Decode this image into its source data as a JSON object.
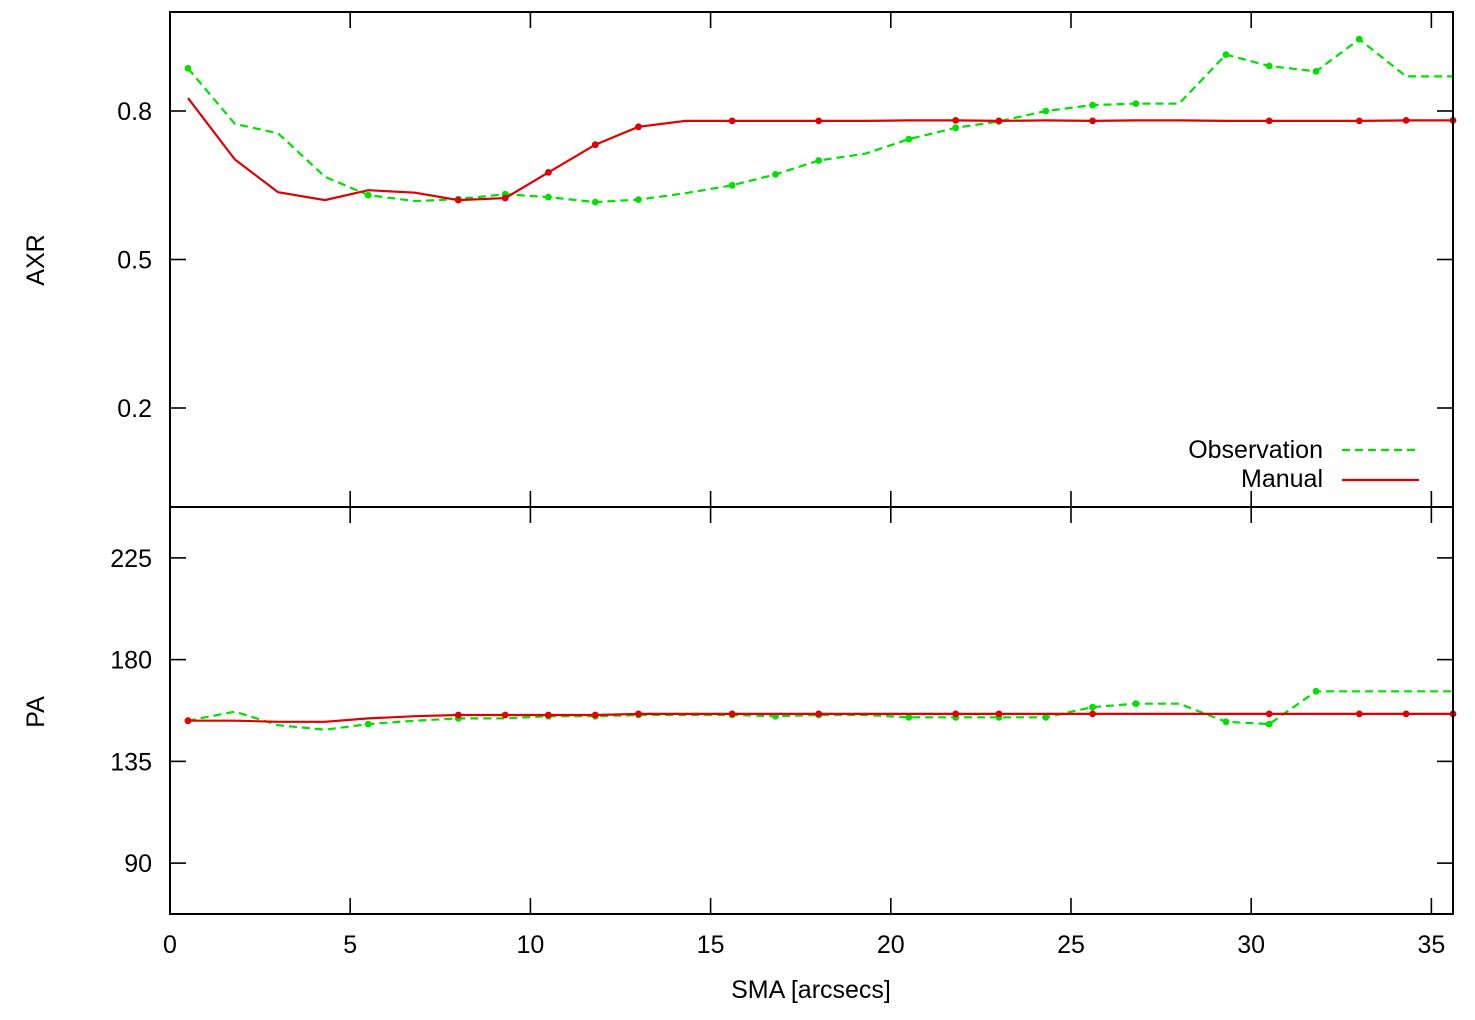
{
  "chart_data": [
    {
      "type": "line",
      "panel": "top",
      "ylabel": "AXR",
      "xlabel": "",
      "xlim": [
        0,
        35.6
      ],
      "ylim": [
        0,
        1
      ],
      "xticks": [
        0,
        5,
        10,
        15,
        20,
        25,
        30,
        35
      ],
      "yticks": [
        0.2,
        0.5,
        0.8
      ],
      "ytick_labels": [
        "0.2",
        "0.5",
        "0.8"
      ],
      "legend": {
        "placement": "bottom-right",
        "entries": [
          {
            "label": "Observation",
            "color": "#00e000",
            "style": "dashed"
          },
          {
            "label": "Manual",
            "color": "#e00000",
            "style": "solid"
          }
        ]
      },
      "series": [
        {
          "name": "Observation",
          "color": "#00e000",
          "style": "dashed",
          "points": [
            [
              0.5,
              0.886
            ],
            [
              1.8,
              0.774
            ],
            [
              3.0,
              0.755
            ],
            [
              4.3,
              0.667
            ],
            [
              5.5,
              0.63
            ],
            [
              6.8,
              0.618
            ],
            [
              8.0,
              0.622
            ],
            [
              9.3,
              0.632
            ],
            [
              10.5,
              0.626
            ],
            [
              11.8,
              0.616
            ],
            [
              13.0,
              0.621
            ],
            [
              14.3,
              0.634
            ],
            [
              15.6,
              0.65
            ],
            [
              16.8,
              0.672
            ],
            [
              18.0,
              0.7
            ],
            [
              19.3,
              0.714
            ],
            [
              20.5,
              0.743
            ],
            [
              21.8,
              0.766
            ],
            [
              23.0,
              0.779
            ],
            [
              24.3,
              0.8
            ],
            [
              25.6,
              0.812
            ],
            [
              26.8,
              0.815
            ],
            [
              28.0,
              0.815
            ],
            [
              29.3,
              0.914
            ],
            [
              30.5,
              0.891
            ],
            [
              31.8,
              0.88
            ],
            [
              33.0,
              0.945
            ],
            [
              34.3,
              0.87
            ],
            [
              35.6,
              0.87
            ]
          ],
          "markers_at": [
            0.5,
            5.5,
            8.0,
            9.3,
            10.5,
            11.8,
            13.0,
            15.6,
            16.8,
            18.0,
            20.5,
            21.8,
            23.0,
            24.3,
            25.6,
            26.8,
            29.3,
            30.5,
            31.8,
            33.0
          ]
        },
        {
          "name": "Manual",
          "color": "#e00000",
          "style": "solid",
          "points": [
            [
              0.5,
              0.826
            ],
            [
              1.8,
              0.702
            ],
            [
              3.0,
              0.636
            ],
            [
              4.3,
              0.62
            ],
            [
              5.5,
              0.64
            ],
            [
              6.8,
              0.635
            ],
            [
              8.0,
              0.62
            ],
            [
              9.3,
              0.624
            ],
            [
              10.5,
              0.676
            ],
            [
              11.8,
              0.732
            ],
            [
              13.0,
              0.768
            ],
            [
              14.3,
              0.78
            ],
            [
              15.6,
              0.78
            ],
            [
              16.8,
              0.78
            ],
            [
              18.0,
              0.78
            ],
            [
              19.3,
              0.78
            ],
            [
              20.5,
              0.781
            ],
            [
              21.8,
              0.781
            ],
            [
              23.0,
              0.78
            ],
            [
              24.3,
              0.781
            ],
            [
              25.6,
              0.78
            ],
            [
              26.8,
              0.781
            ],
            [
              28.0,
              0.781
            ],
            [
              29.3,
              0.78
            ],
            [
              30.5,
              0.78
            ],
            [
              31.8,
              0.78
            ],
            [
              33.0,
              0.78
            ],
            [
              34.3,
              0.781
            ],
            [
              35.6,
              0.781
            ]
          ],
          "markers_at": [
            8.0,
            9.3,
            10.5,
            11.8,
            13.0,
            15.6,
            18.0,
            21.8,
            23.0,
            25.6,
            30.5,
            33.0,
            34.3,
            35.6
          ]
        }
      ]
    },
    {
      "type": "line",
      "panel": "bottom",
      "ylabel": "PA",
      "xlabel": "SMA [arcsecs]",
      "xlim": [
        0,
        35.6
      ],
      "ylim": [
        67.5,
        247.5
      ],
      "xticks": [
        0,
        5,
        10,
        15,
        20,
        25,
        30,
        35
      ],
      "xtick_labels": [
        "0",
        "5",
        "10",
        "15",
        "20",
        "25",
        "30",
        "35"
      ],
      "yticks": [
        90,
        135,
        180,
        225
      ],
      "ytick_labels": [
        "90",
        "135",
        "180",
        "225"
      ],
      "series": [
        {
          "name": "Observation",
          "color": "#00e000",
          "style": "dashed",
          "points": [
            [
              0.5,
              153
            ],
            [
              1.8,
              157
            ],
            [
              3.0,
              151
            ],
            [
              4.3,
              149
            ],
            [
              5.5,
              151.5
            ],
            [
              6.8,
              153
            ],
            [
              8.0,
              154
            ],
            [
              9.3,
              154
            ],
            [
              10.5,
              155
            ],
            [
              11.8,
              155
            ],
            [
              13.0,
              155.5
            ],
            [
              14.3,
              155.5
            ],
            [
              15.6,
              155.5
            ],
            [
              16.8,
              155
            ],
            [
              18.0,
              155.5
            ],
            [
              19.3,
              155.5
            ],
            [
              20.5,
              154.5
            ],
            [
              21.8,
              154.5
            ],
            [
              23.0,
              154.5
            ],
            [
              24.3,
              154.5
            ],
            [
              25.6,
              159
            ],
            [
              26.8,
              160.5
            ],
            [
              28.0,
              160.5
            ],
            [
              29.3,
              152.5
            ],
            [
              30.5,
              151.5
            ],
            [
              31.8,
              166
            ],
            [
              33.0,
              166
            ],
            [
              34.3,
              166
            ],
            [
              35.6,
              166
            ]
          ],
          "markers_at": [
            0.5,
            5.5,
            8.0,
            10.5,
            11.8,
            13.0,
            15.6,
            16.8,
            18.0,
            20.5,
            21.8,
            23.0,
            24.3,
            25.6,
            26.8,
            29.3,
            30.5,
            31.8
          ]
        },
        {
          "name": "Manual",
          "color": "#e00000",
          "style": "solid",
          "points": [
            [
              0.5,
              153
            ],
            [
              1.8,
              153
            ],
            [
              3.0,
              152.5
            ],
            [
              4.3,
              152.5
            ],
            [
              5.5,
              154
            ],
            [
              6.8,
              155
            ],
            [
              8.0,
              155.5
            ],
            [
              9.3,
              155.5
            ],
            [
              10.5,
              155.5
            ],
            [
              11.8,
              155.5
            ],
            [
              13.0,
              156
            ],
            [
              14.3,
              156
            ],
            [
              15.6,
              156
            ],
            [
              16.8,
              156
            ],
            [
              18.0,
              156
            ],
            [
              19.3,
              156
            ],
            [
              20.5,
              156
            ],
            [
              21.8,
              156
            ],
            [
              23.0,
              156
            ],
            [
              24.3,
              156
            ],
            [
              25.6,
              156
            ],
            [
              26.8,
              156
            ],
            [
              28.0,
              156
            ],
            [
              29.3,
              156
            ],
            [
              30.5,
              156
            ],
            [
              31.8,
              156
            ],
            [
              33.0,
              156
            ],
            [
              34.3,
              156
            ],
            [
              35.6,
              156
            ]
          ],
          "markers_at": [
            0.5,
            8.0,
            9.3,
            10.5,
            11.8,
            13.0,
            15.6,
            18.0,
            21.8,
            23.0,
            25.6,
            30.5,
            33.0,
            34.3,
            35.6
          ]
        }
      ]
    }
  ]
}
